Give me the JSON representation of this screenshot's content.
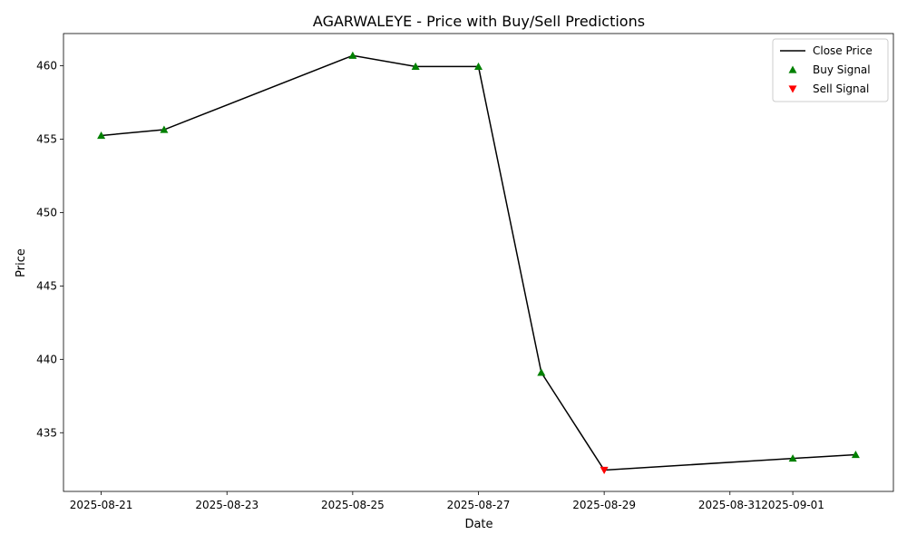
{
  "chart_data": {
    "type": "line",
    "title": "AGARWALEYE - Price with Buy/Sell Predictions",
    "xlabel": "Date",
    "ylabel": "Price",
    "x_tick_labels": [
      "2025-08-21",
      "2025-08-23",
      "2025-08-25",
      "2025-08-27",
      "2025-08-29",
      "2025-08-31",
      "2025-09-01"
    ],
    "x_tick_dates": [
      "2025-08-21",
      "2025-08-23",
      "2025-08-25",
      "2025-08-27",
      "2025-08-29",
      "2025-08-31",
      "2025-09-01"
    ],
    "y_ticks": [
      435,
      440,
      445,
      450,
      455,
      460
    ],
    "xlim": [
      "2025-08-20T09:36",
      "2025-09-02T14:24"
    ],
    "ylim": [
      431.0,
      462.2
    ],
    "grid": false,
    "legend_position": "top-right",
    "series": [
      {
        "name": "Close Price",
        "kind": "line",
        "color": "#000000",
        "x": [
          "2025-08-21",
          "2025-08-22",
          "2025-08-25",
          "2025-08-26",
          "2025-08-27",
          "2025-08-28",
          "2025-08-29",
          "2025-09-01",
          "2025-09-02"
        ],
        "y": [
          455.25,
          455.65,
          460.7,
          459.95,
          459.95,
          439.1,
          432.45,
          433.25,
          433.5
        ]
      },
      {
        "name": "Buy Signal",
        "kind": "marker",
        "marker": "triangle-up",
        "color": "#008000",
        "x": [
          "2025-08-21",
          "2025-08-22",
          "2025-08-25",
          "2025-08-26",
          "2025-08-27",
          "2025-08-28",
          "2025-09-01",
          "2025-09-02"
        ],
        "y": [
          455.25,
          455.65,
          460.7,
          459.95,
          459.95,
          439.1,
          433.25,
          433.5
        ]
      },
      {
        "name": "Sell Signal",
        "kind": "marker",
        "marker": "triangle-down",
        "color": "#ff0000",
        "x": [
          "2025-08-29"
        ],
        "y": [
          432.45
        ]
      }
    ]
  }
}
